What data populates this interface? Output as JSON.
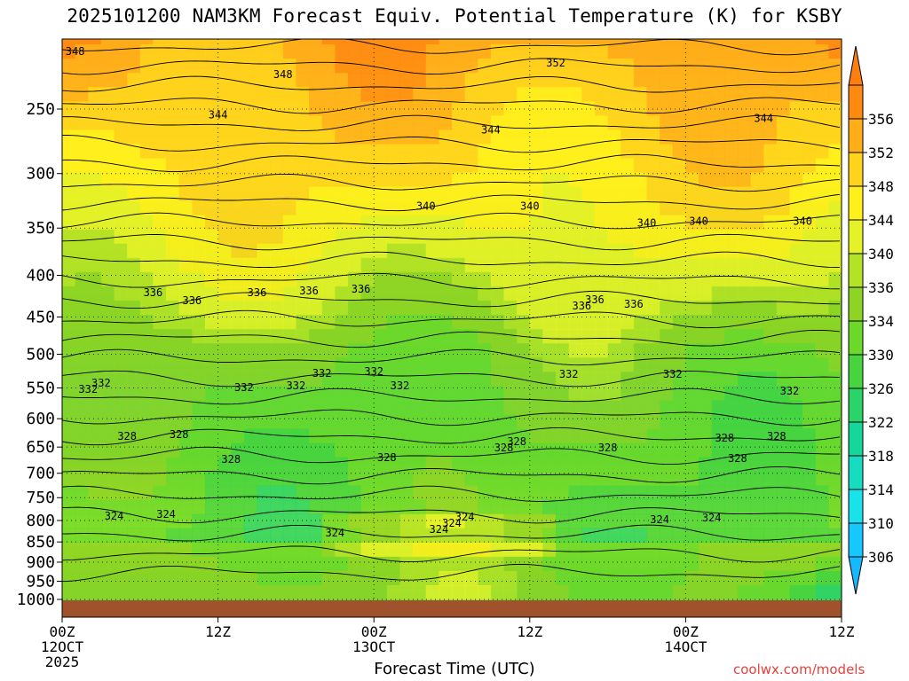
{
  "chart_data": {
    "type": "heatmap",
    "title": "2025101200 NAM3KM Forecast Equiv. Potential Temperature (K) for KSBY",
    "xlabel": "Forecast Time (UTC)",
    "ylabel": "",
    "y_axis": {
      "unit": "hPa",
      "scale": "log-pressure",
      "range": [
        1000,
        200
      ],
      "ticks": [
        250,
        300,
        350,
        400,
        450,
        500,
        550,
        600,
        650,
        700,
        750,
        800,
        850,
        900,
        950,
        1000
      ],
      "tick_labels": [
        "250",
        "300",
        "350",
        "400",
        "450",
        "500",
        "550",
        "600",
        "650",
        "700",
        "750",
        "800",
        "850",
        "900",
        "950",
        "1000"
      ]
    },
    "x_axis": {
      "range_hours": [
        0,
        60
      ],
      "ticks_hours": [
        0,
        12,
        24,
        36,
        48,
        60
      ],
      "tick_labels": [
        [
          "00Z",
          "12OCT",
          "2025"
        ],
        [
          "12Z"
        ],
        [
          "00Z",
          "13OCT"
        ],
        [
          "12Z"
        ],
        [
          "00Z",
          "14OCT"
        ],
        [
          "12Z"
        ]
      ]
    },
    "colorbar": {
      "levels": [
        306,
        310,
        314,
        318,
        322,
        326,
        330,
        334,
        336,
        340,
        344,
        348,
        352,
        356
      ],
      "labels": [
        "306",
        "310",
        "314",
        "318",
        "322",
        "326",
        "330",
        "334",
        "336",
        "340",
        "344",
        "348",
        "352",
        "356"
      ],
      "colors": [
        "#16c8ff",
        "#19e2ea",
        "#16dcc2",
        "#14d89a",
        "#2cd468",
        "#48d43e",
        "#6cd82a",
        "#8ed424",
        "#b4e226",
        "#e6f228",
        "#fff01c",
        "#ffd21c",
        "#ffae1a",
        "#ff8a12"
      ],
      "bottom_arrow_color": "#16b8ff",
      "top_arrow_color": "#ff7e10"
    },
    "contour_labels": [
      "348",
      "352",
      "348",
      "344",
      "344",
      "344",
      "340",
      "340",
      "336",
      "336",
      "336",
      "332",
      "332",
      "332",
      "328",
      "328",
      "328",
      "324",
      "324",
      "324",
      "340",
      "332",
      "332",
      "336",
      "336",
      "332",
      "328",
      "332",
      "328",
      "324",
      "328",
      "324",
      "328",
      "324",
      "336",
      "332",
      "340",
      "340",
      "336",
      "328",
      "324",
      "336",
      "332",
      "332",
      "328",
      "328",
      "324"
    ],
    "terrain_color": "#a0522d",
    "grid": "dotted"
  },
  "credit": "coolwx.com/models"
}
